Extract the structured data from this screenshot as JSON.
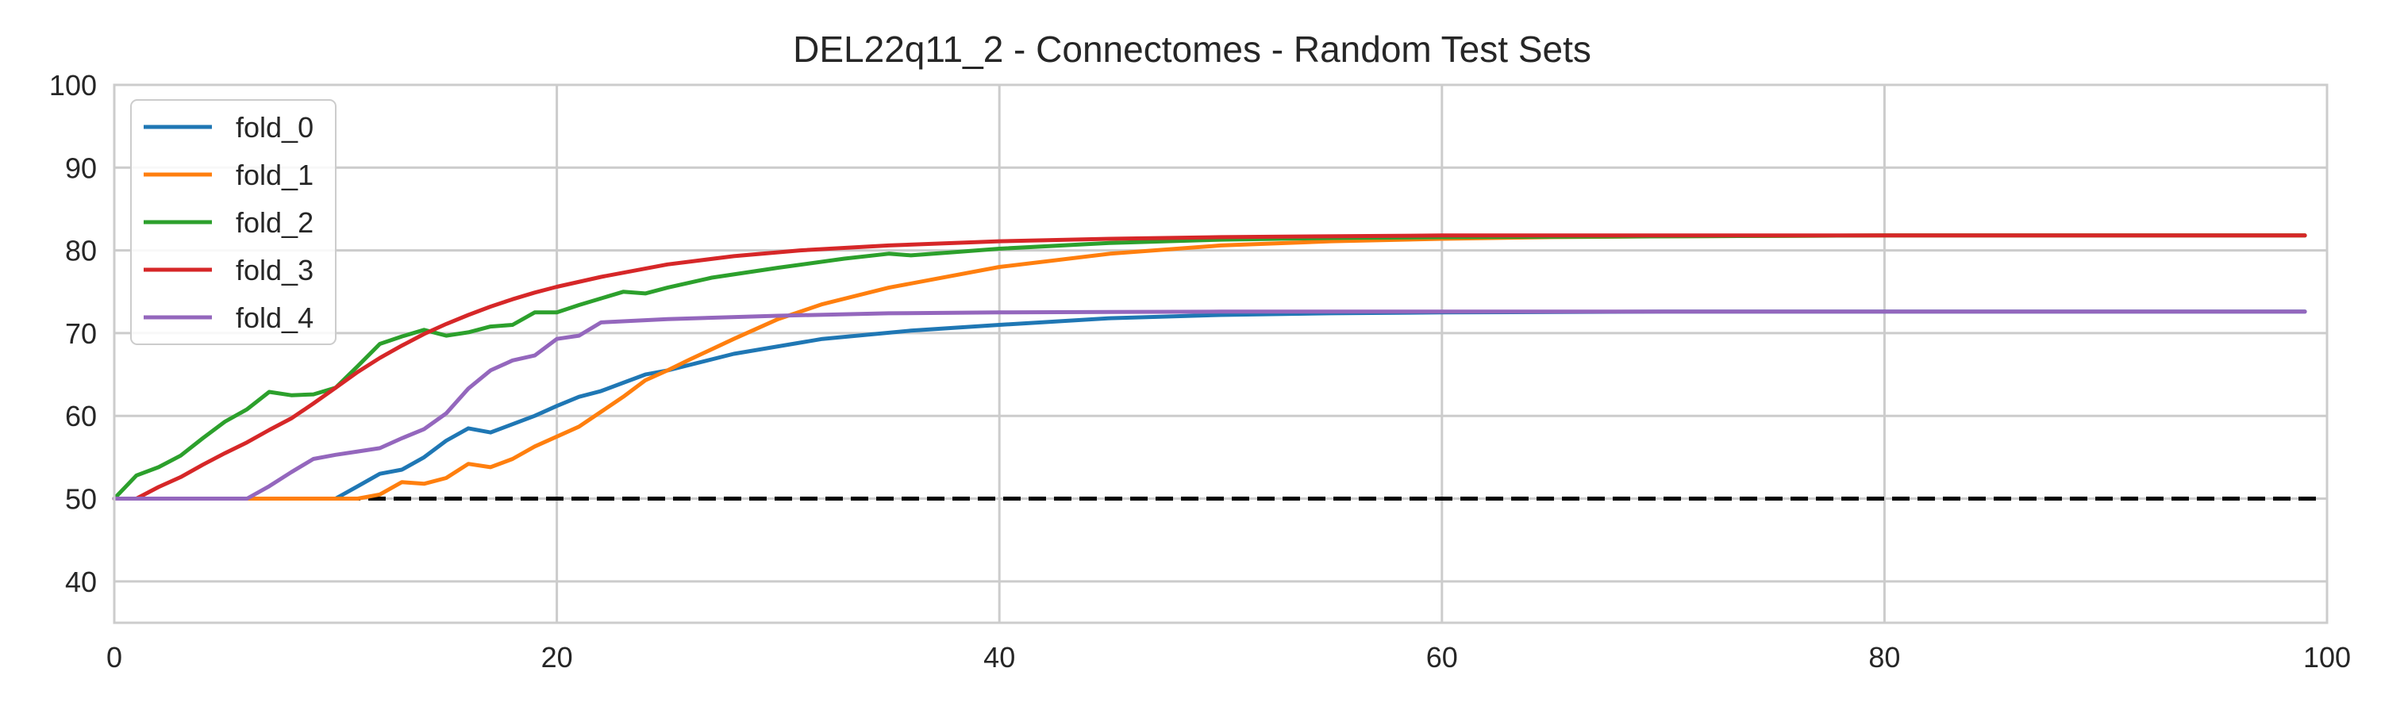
{
  "chart_data": {
    "type": "line",
    "title": "DEL22q11_2 - Connectomes - Random Test Sets",
    "xlabel": "",
    "ylabel": "",
    "xlim": [
      0,
      100
    ],
    "ylim": [
      35,
      100
    ],
    "xticks": [
      0,
      20,
      40,
      60,
      80,
      100
    ],
    "yticks": [
      40,
      50,
      60,
      70,
      80,
      90,
      100
    ],
    "grid": true,
    "legend_position": "top-left",
    "baseline": {
      "y": 50,
      "color": "#000000",
      "style": "dashed"
    },
    "series": [
      {
        "name": "fold_0",
        "color": "#1f77b4",
        "points": [
          [
            0,
            50
          ],
          [
            10,
            50
          ],
          [
            11,
            51.5
          ],
          [
            12,
            53
          ],
          [
            13,
            53.5
          ],
          [
            14,
            55
          ],
          [
            15,
            57
          ],
          [
            16,
            58.5
          ],
          [
            17,
            58
          ],
          [
            18,
            59
          ],
          [
            19,
            60
          ],
          [
            20,
            61.2
          ],
          [
            21,
            62.3
          ],
          [
            22,
            63
          ],
          [
            23,
            64
          ],
          [
            24,
            65
          ],
          [
            25,
            65.5
          ],
          [
            28,
            67.5
          ],
          [
            32,
            69.3
          ],
          [
            36,
            70.3
          ],
          [
            40,
            71
          ],
          [
            45,
            71.8
          ],
          [
            50,
            72.2
          ],
          [
            55,
            72.4
          ],
          [
            60,
            72.5
          ],
          [
            70,
            72.6
          ],
          [
            80,
            72.6
          ],
          [
            90,
            72.6
          ],
          [
            99,
            72.6
          ]
        ]
      },
      {
        "name": "fold_1",
        "color": "#ff7f0e",
        "points": [
          [
            0,
            50
          ],
          [
            11,
            50
          ],
          [
            12,
            50.5
          ],
          [
            13,
            52
          ],
          [
            14,
            51.8
          ],
          [
            15,
            52.5
          ],
          [
            16,
            54.2
          ],
          [
            17,
            53.8
          ],
          [
            18,
            54.8
          ],
          [
            19,
            56.3
          ],
          [
            20,
            57.5
          ],
          [
            21,
            58.7
          ],
          [
            22,
            60.5
          ],
          [
            23,
            62.3
          ],
          [
            24,
            64.3
          ],
          [
            25,
            65.5
          ],
          [
            26,
            66.8
          ],
          [
            28,
            69.3
          ],
          [
            30,
            71.7
          ],
          [
            32,
            73.5
          ],
          [
            35,
            75.5
          ],
          [
            40,
            78
          ],
          [
            45,
            79.6
          ],
          [
            50,
            80.6
          ],
          [
            55,
            81.1
          ],
          [
            60,
            81.4
          ],
          [
            65,
            81.6
          ],
          [
            70,
            81.7
          ],
          [
            80,
            81.8
          ],
          [
            90,
            81.8
          ],
          [
            99,
            81.8
          ]
        ]
      },
      {
        "name": "fold_2",
        "color": "#2ca02c",
        "points": [
          [
            0,
            50
          ],
          [
            1,
            52.8
          ],
          [
            2,
            53.8
          ],
          [
            3,
            55.2
          ],
          [
            4,
            57.3
          ],
          [
            5,
            59.3
          ],
          [
            6,
            60.8
          ],
          [
            7,
            62.9
          ],
          [
            8,
            62.5
          ],
          [
            9,
            62.6
          ],
          [
            10,
            63.4
          ],
          [
            11,
            66
          ],
          [
            12,
            68.7
          ],
          [
            13,
            69.6
          ],
          [
            14,
            70.4
          ],
          [
            15,
            69.7
          ],
          [
            16,
            70.1
          ],
          [
            17,
            70.8
          ],
          [
            18,
            71
          ],
          [
            19,
            72.5
          ],
          [
            20,
            72.5
          ],
          [
            21,
            73.4
          ],
          [
            22,
            74.2
          ],
          [
            23,
            75
          ],
          [
            24,
            74.8
          ],
          [
            25,
            75.5
          ],
          [
            27,
            76.7
          ],
          [
            30,
            77.9
          ],
          [
            33,
            79
          ],
          [
            35,
            79.6
          ],
          [
            36,
            79.4
          ],
          [
            38,
            79.8
          ],
          [
            40,
            80.2
          ],
          [
            45,
            80.9
          ],
          [
            50,
            81.3
          ],
          [
            55,
            81.5
          ],
          [
            60,
            81.6
          ],
          [
            70,
            81.7
          ],
          [
            80,
            81.8
          ],
          [
            90,
            81.8
          ],
          [
            99,
            81.8
          ]
        ]
      },
      {
        "name": "fold_3",
        "color": "#d62728",
        "points": [
          [
            0,
            50
          ],
          [
            1,
            50
          ],
          [
            2,
            51.4
          ],
          [
            3,
            52.6
          ],
          [
            4,
            54.1
          ],
          [
            5,
            55.5
          ],
          [
            6,
            56.8
          ],
          [
            7,
            58.3
          ],
          [
            8,
            59.7
          ],
          [
            9,
            61.5
          ],
          [
            10,
            63.4
          ],
          [
            11,
            65.3
          ],
          [
            12,
            67
          ],
          [
            13,
            68.5
          ],
          [
            14,
            69.9
          ],
          [
            15,
            71.1
          ],
          [
            16,
            72.2
          ],
          [
            17,
            73.2
          ],
          [
            18,
            74.1
          ],
          [
            19,
            74.9
          ],
          [
            20,
            75.6
          ],
          [
            22,
            76.8
          ],
          [
            25,
            78.3
          ],
          [
            28,
            79.3
          ],
          [
            31,
            80
          ],
          [
            35,
            80.6
          ],
          [
            40,
            81.1
          ],
          [
            45,
            81.4
          ],
          [
            50,
            81.6
          ],
          [
            60,
            81.8
          ],
          [
            70,
            81.8
          ],
          [
            80,
            81.8
          ],
          [
            90,
            81.8
          ],
          [
            99,
            81.8
          ]
        ]
      },
      {
        "name": "fold_4",
        "color": "#9467bd",
        "points": [
          [
            0,
            50
          ],
          [
            6,
            50
          ],
          [
            7,
            51.5
          ],
          [
            8,
            53.2
          ],
          [
            9,
            54.8
          ],
          [
            10,
            55.3
          ],
          [
            11,
            55.7
          ],
          [
            12,
            56.1
          ],
          [
            13,
            57.3
          ],
          [
            14,
            58.4
          ],
          [
            15,
            60.3
          ],
          [
            16,
            63.3
          ],
          [
            17,
            65.5
          ],
          [
            18,
            66.7
          ],
          [
            19,
            67.3
          ],
          [
            20,
            69.3
          ],
          [
            21,
            69.7
          ],
          [
            22,
            71.3
          ],
          [
            25,
            71.7
          ],
          [
            30,
            72.1
          ],
          [
            35,
            72.4
          ],
          [
            40,
            72.5
          ],
          [
            50,
            72.6
          ],
          [
            60,
            72.6
          ],
          [
            70,
            72.6
          ],
          [
            80,
            72.6
          ],
          [
            90,
            72.6
          ],
          [
            99,
            72.6
          ]
        ]
      }
    ]
  }
}
